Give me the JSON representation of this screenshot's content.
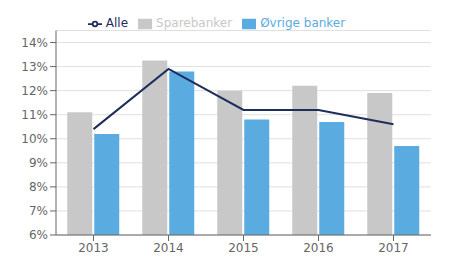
{
  "chart_data": {
    "type": "bar",
    "categories": [
      "2013",
      "2014",
      "2015",
      "2016",
      "2017"
    ],
    "series": [
      {
        "name": "Sparebanker",
        "type": "bar",
        "color": "#c8c8c8",
        "values": [
          11.1,
          13.25,
          12.0,
          12.2,
          11.9
        ]
      },
      {
        "name": "Øvrige banker",
        "type": "bar",
        "color": "#5aace0",
        "values": [
          10.2,
          12.8,
          10.8,
          10.7,
          9.7
        ]
      },
      {
        "name": "Alle",
        "type": "line",
        "color": "#1f2d5a",
        "values": [
          10.4,
          12.9,
          11.2,
          11.2,
          10.6
        ]
      }
    ],
    "ylim": [
      6,
      14.5
    ],
    "yticks": [
      {
        "value": 6,
        "label": "6%"
      },
      {
        "value": 7,
        "label": "7%"
      },
      {
        "value": 8,
        "label": "8%"
      },
      {
        "value": 9,
        "label": "9%"
      },
      {
        "value": 10,
        "label": "10%"
      },
      {
        "value": 11,
        "label": "11%"
      },
      {
        "value": 12,
        "label": "12%"
      },
      {
        "value": 13,
        "label": "13%"
      },
      {
        "value": 14,
        "label": "14%"
      }
    ],
    "grid": true,
    "legend": "top"
  }
}
